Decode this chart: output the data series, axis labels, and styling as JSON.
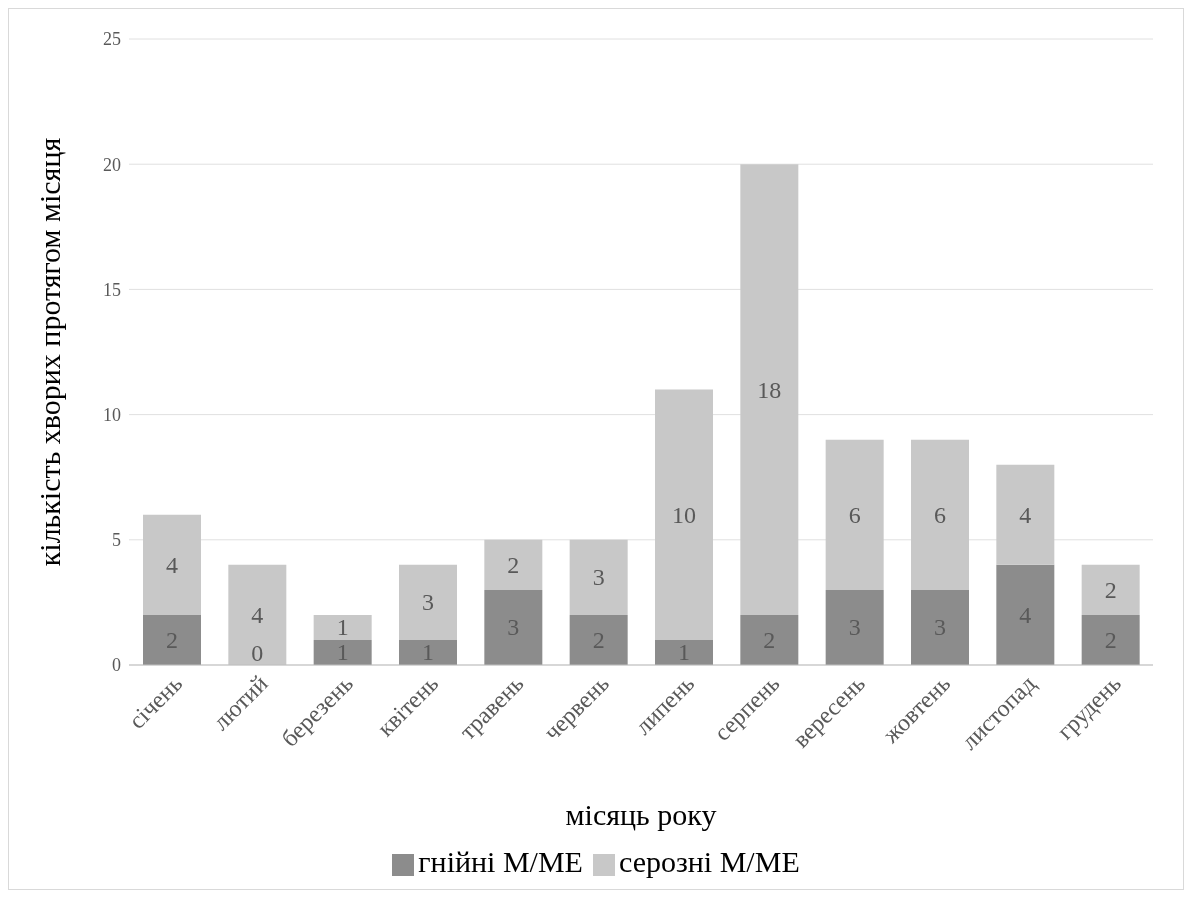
{
  "chart_data": {
    "type": "bar",
    "stacked": true,
    "xlabel": "місяць року",
    "ylabel": "кількість хворих протягом місяця",
    "categories": [
      "січень",
      "лютий",
      "березень",
      "квітень",
      "травень",
      "червень",
      "липень",
      "серпень",
      "вересень",
      "жовтень",
      "листопад",
      "грудень"
    ],
    "series": [
      {
        "name": "гнійні М/МЕ",
        "color": "#8c8c8c",
        "values": [
          2,
          0,
          1,
          1,
          3,
          2,
          1,
          2,
          3,
          3,
          4,
          2
        ]
      },
      {
        "name": "серозні М/МЕ",
        "color": "#c8c8c8",
        "values": [
          4,
          4,
          1,
          3,
          2,
          3,
          10,
          18,
          6,
          6,
          4,
          2
        ]
      }
    ],
    "ylim": [
      0,
      25
    ],
    "yticks": [
      0,
      5,
      10,
      15,
      20,
      25
    ],
    "grid": "y",
    "legend": "bottom",
    "data_labels": true
  }
}
